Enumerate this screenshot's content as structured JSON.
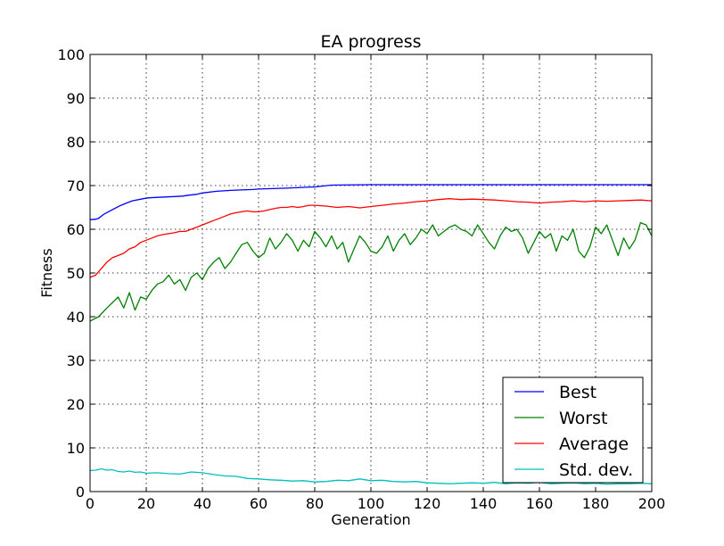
{
  "chart_data": {
    "type": "line",
    "title": "EA progress",
    "xlabel": "Generation",
    "ylabel": "Fitness",
    "xlim": [
      0,
      200
    ],
    "ylim": [
      0,
      100
    ],
    "xticks": [
      0,
      20,
      40,
      60,
      80,
      100,
      120,
      140,
      160,
      180,
      200
    ],
    "yticks": [
      0,
      10,
      20,
      30,
      40,
      50,
      60,
      70,
      80,
      90,
      100
    ],
    "grid": true,
    "legend_position": "lower-right",
    "series": [
      {
        "name": "Best",
        "color": "#0000ff",
        "x": [
          0,
          2,
          3,
          5,
          8,
          11,
          13,
          15,
          19,
          21,
          30,
          33,
          35,
          38,
          40,
          45,
          50,
          58,
          60,
          70,
          76,
          80,
          86,
          100,
          200
        ],
        "y": [
          62.2,
          62.3,
          62.5,
          63.5,
          64.5,
          65.5,
          66.0,
          66.5,
          67.0,
          67.2,
          67.5,
          67.6,
          67.8,
          68.0,
          68.3,
          68.7,
          68.9,
          69.1,
          69.2,
          69.4,
          69.6,
          69.7,
          70.1,
          70.2,
          70.2
        ]
      },
      {
        "name": "Worst",
        "color": "#008000",
        "x": [
          0,
          3,
          6,
          10,
          12,
          14,
          16,
          18,
          20,
          22,
          24,
          26,
          28,
          30,
          32,
          34,
          36,
          38,
          40,
          42,
          44,
          46,
          48,
          50,
          52,
          54,
          56,
          58,
          60,
          62,
          64,
          66,
          68,
          70,
          72,
          74,
          76,
          78,
          80,
          82,
          84,
          86,
          88,
          90,
          92,
          94,
          96,
          98,
          100,
          102,
          104,
          106,
          108,
          110,
          112,
          114,
          116,
          118,
          120,
          122,
          124,
          126,
          128,
          130,
          132,
          134,
          136,
          138,
          140,
          142,
          144,
          146,
          148,
          150,
          152,
          154,
          156,
          158,
          160,
          162,
          164,
          166,
          168,
          170,
          172,
          174,
          176,
          178,
          180,
          182,
          184,
          186,
          188,
          190,
          192,
          194,
          196,
          198,
          200
        ],
        "y": [
          39.0,
          40.0,
          42.0,
          44.5,
          42.0,
          45.5,
          41.5,
          44.5,
          44.0,
          46.0,
          47.5,
          48.0,
          49.5,
          47.5,
          48.5,
          46.0,
          49.0,
          50.0,
          48.5,
          51.0,
          52.5,
          53.5,
          51.0,
          52.5,
          54.5,
          56.5,
          57.0,
          55.0,
          53.5,
          54.5,
          58.0,
          55.5,
          57.0,
          59.0,
          57.5,
          55.0,
          57.5,
          56.0,
          59.5,
          58.0,
          56.0,
          58.5,
          55.5,
          57.0,
          52.5,
          55.5,
          58.5,
          57.0,
          55.0,
          54.5,
          56.0,
          58.5,
          55.0,
          57.5,
          59.0,
          56.5,
          58.0,
          60.0,
          59.0,
          61.0,
          58.5,
          59.5,
          60.5,
          61.0,
          60.0,
          59.5,
          58.5,
          61.0,
          59.0,
          57.0,
          55.5,
          58.5,
          60.5,
          59.5,
          60.0,
          58.0,
          54.5,
          57.0,
          59.5,
          58.0,
          59.0,
          55.0,
          58.5,
          57.5,
          60.0,
          55.0,
          53.5,
          56.0,
          60.5,
          59.0,
          61.0,
          57.5,
          54.0,
          58.0,
          55.5,
          57.5,
          61.5,
          61.0,
          58.5
        ]
      },
      {
        "name": "Average",
        "color": "#ff0000",
        "x": [
          0,
          2,
          4,
          6,
          8,
          10,
          12,
          14,
          16,
          18,
          20,
          22,
          24,
          26,
          28,
          30,
          32,
          34,
          36,
          38,
          40,
          42,
          44,
          46,
          48,
          50,
          52,
          54,
          56,
          58,
          60,
          62,
          64,
          66,
          68,
          70,
          72,
          74,
          76,
          78,
          80,
          84,
          88,
          92,
          96,
          100,
          104,
          108,
          112,
          116,
          120,
          124,
          128,
          132,
          136,
          140,
          144,
          148,
          152,
          156,
          160,
          164,
          168,
          172,
          176,
          180,
          184,
          188,
          192,
          196,
          200
        ],
        "y": [
          49.0,
          49.5,
          51.0,
          52.5,
          53.5,
          54.0,
          54.5,
          55.5,
          56.0,
          57.0,
          57.5,
          58.0,
          58.5,
          58.8,
          59.0,
          59.2,
          59.5,
          59.5,
          60.0,
          60.5,
          61.0,
          61.5,
          62.0,
          62.5,
          63.0,
          63.5,
          63.8,
          64.0,
          64.2,
          64.0,
          64.0,
          64.2,
          64.5,
          64.8,
          65.0,
          65.0,
          65.2,
          65.0,
          65.2,
          65.5,
          65.5,
          65.3,
          65.0,
          65.2,
          64.9,
          65.2,
          65.5,
          65.8,
          66.0,
          66.3,
          66.5,
          66.8,
          67.0,
          66.8,
          66.9,
          66.8,
          66.7,
          66.5,
          66.3,
          66.2,
          66.0,
          66.2,
          66.3,
          66.5,
          66.3,
          66.5,
          66.4,
          66.5,
          66.6,
          66.7,
          66.5
        ]
      },
      {
        "name": "Std. dev.",
        "color": "#00bfbf",
        "x": [
          0,
          2,
          4,
          6,
          8,
          10,
          12,
          14,
          16,
          18,
          20,
          24,
          28,
          32,
          36,
          40,
          44,
          48,
          52,
          56,
          60,
          64,
          68,
          72,
          76,
          80,
          84,
          88,
          92,
          96,
          100,
          104,
          108,
          112,
          116,
          120,
          124,
          128,
          132,
          136,
          140,
          144,
          148,
          152,
          156,
          160,
          164,
          168,
          172,
          176,
          180,
          184,
          188,
          192,
          196,
          200
        ],
        "y": [
          4.8,
          4.9,
          5.2,
          4.9,
          5.0,
          4.6,
          4.5,
          4.7,
          4.4,
          4.5,
          4.2,
          4.3,
          4.1,
          4.0,
          4.5,
          4.3,
          3.9,
          3.6,
          3.5,
          3.0,
          2.9,
          2.7,
          2.6,
          2.4,
          2.5,
          2.2,
          2.3,
          2.6,
          2.5,
          2.9,
          2.5,
          2.6,
          2.3,
          2.2,
          2.3,
          2.0,
          1.9,
          1.8,
          1.9,
          2.0,
          1.9,
          2.1,
          1.8,
          2.0,
          1.9,
          2.1,
          1.8,
          1.9,
          2.0,
          1.8,
          1.9,
          1.7,
          1.8,
          1.8,
          1.9,
          1.8
        ]
      }
    ]
  }
}
